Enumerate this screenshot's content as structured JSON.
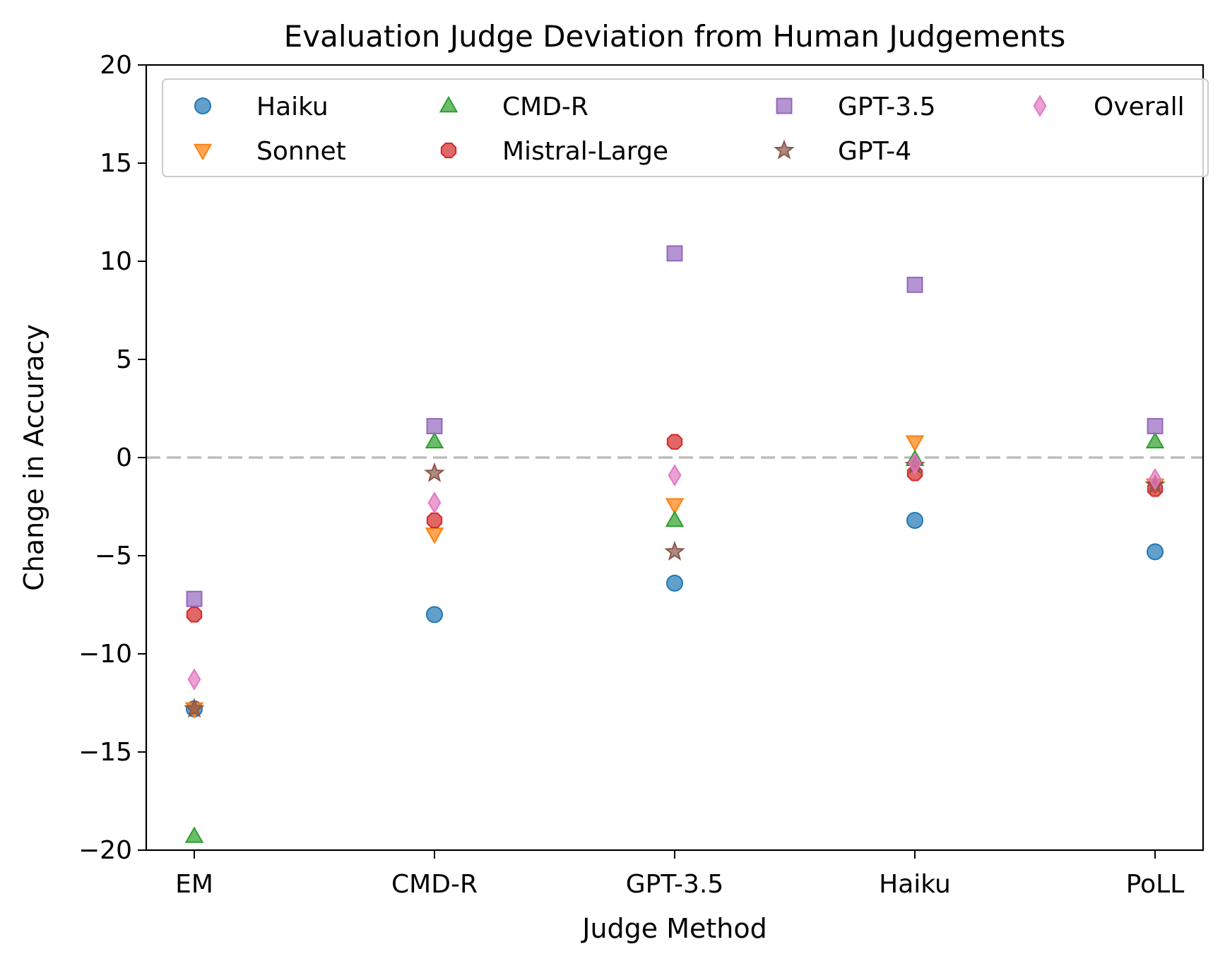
{
  "chart_data": {
    "type": "scatter",
    "title": "Evaluation Judge Deviation from Human Judgements",
    "xlabel": "Judge Method",
    "ylabel": "Change in Accuracy",
    "categories": [
      "EM",
      "CMD-R",
      "GPT-3.5",
      "Haiku",
      "PoLL"
    ],
    "ylim": [
      -20,
      20
    ],
    "yticks": [
      -20,
      -15,
      -10,
      -5,
      0,
      5,
      10,
      15,
      20
    ],
    "ytick_labels": [
      "−20",
      "−15",
      "−10",
      "−5",
      "0",
      "5",
      "10",
      "15",
      "20"
    ],
    "reference_line": 0,
    "grid": false,
    "legend_position": "top",
    "series": [
      {
        "name": "Haiku",
        "marker": "circle",
        "color": "#1f77b4",
        "values": [
          -12.8,
          -8.0,
          -6.4,
          -3.2,
          -4.8
        ]
      },
      {
        "name": "Sonnet",
        "marker": "triangle-down",
        "color": "#ff7f0e",
        "values": [
          -12.8,
          -3.9,
          -2.4,
          0.8,
          -1.4
        ]
      },
      {
        "name": "CMD-R",
        "marker": "triangle-up",
        "color": "#2ca02c",
        "values": [
          -19.3,
          0.8,
          -3.2,
          -0.1,
          0.8
        ]
      },
      {
        "name": "Mistral-Large",
        "marker": "octagon",
        "color": "#d62728",
        "values": [
          -8.0,
          -3.2,
          0.8,
          -0.8,
          -1.6
        ]
      },
      {
        "name": "GPT-3.5",
        "marker": "square",
        "color": "#9467bd",
        "values": [
          -7.2,
          1.6,
          10.4,
          8.8,
          1.6
        ]
      },
      {
        "name": "GPT-4",
        "marker": "star",
        "color": "#8c564b",
        "values": [
          -12.8,
          -0.8,
          -4.8,
          -0.4,
          -1.4
        ]
      },
      {
        "name": "Overall",
        "marker": "diamond",
        "color": "#e377c2",
        "values": [
          -11.3,
          -2.3,
          -0.9,
          -0.3,
          -1.1
        ]
      }
    ]
  }
}
